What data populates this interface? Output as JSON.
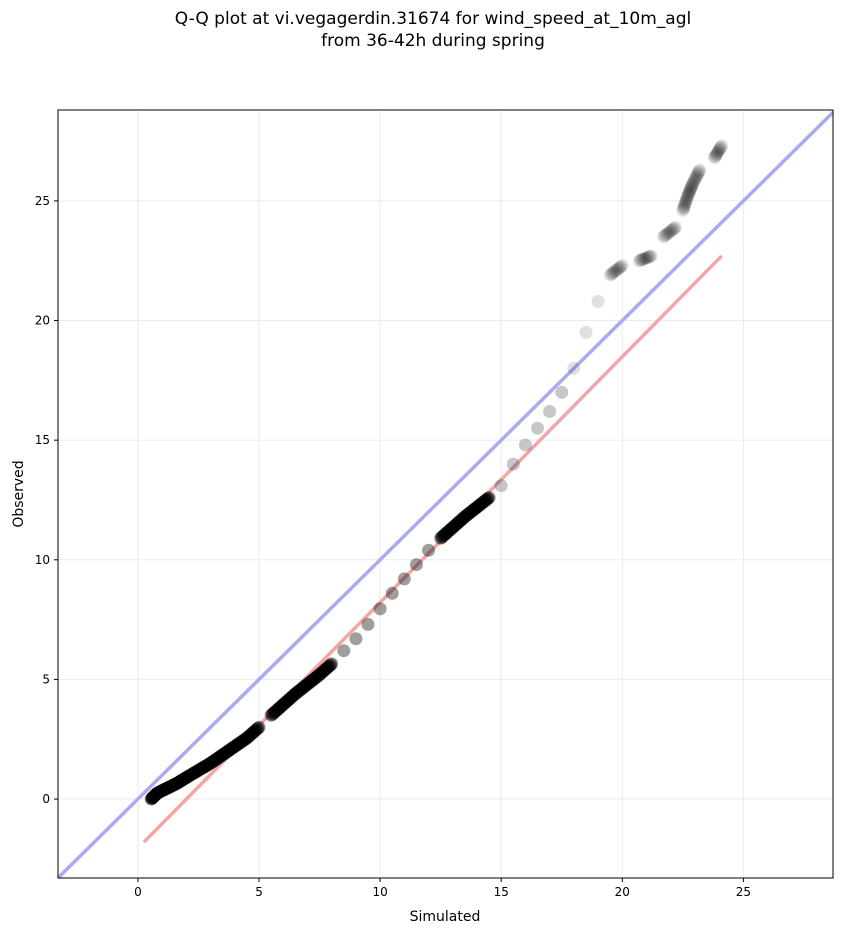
{
  "chart_data": {
    "type": "scatter",
    "title_line1": "Q-Q plot at vi.vegagerdin.31674 for wind_speed_at_10m_agl",
    "title_line2": "from 36-42h during spring",
    "xlabel": "Simulated",
    "ylabel": "Observed",
    "xlim": [
      -3.3,
      28.7
    ],
    "ylim": [
      -3.3,
      28.8
    ],
    "x_ticks": [
      0,
      5,
      10,
      15,
      20,
      25
    ],
    "y_ticks": [
      0,
      5,
      10,
      15,
      20,
      25
    ],
    "grid": true,
    "colors": {
      "points": "#000000",
      "identity_line": "#aaaaf0",
      "fit_line": "#f4a6a6",
      "grid": "#ebebeb"
    },
    "series": [
      {
        "kind": "quantile-points",
        "points": [
          [
            0.55,
            0.0
          ],
          [
            0.8,
            0.25
          ],
          [
            1.2,
            0.45
          ],
          [
            1.6,
            0.65
          ],
          [
            2.0,
            0.9
          ],
          [
            2.5,
            1.2
          ],
          [
            3.0,
            1.5
          ],
          [
            3.5,
            1.85
          ],
          [
            4.0,
            2.2
          ],
          [
            4.5,
            2.55
          ],
          [
            5.0,
            3.0
          ],
          [
            5.5,
            3.5
          ],
          [
            6.0,
            3.95
          ],
          [
            6.5,
            4.4
          ],
          [
            7.0,
            4.8
          ],
          [
            7.5,
            5.2
          ],
          [
            8.0,
            5.65
          ],
          [
            8.5,
            6.2
          ],
          [
            9.0,
            6.7
          ],
          [
            9.5,
            7.3
          ],
          [
            10.0,
            7.95
          ],
          [
            10.5,
            8.6
          ],
          [
            11.0,
            9.2
          ],
          [
            11.5,
            9.8
          ],
          [
            12.0,
            10.4
          ],
          [
            12.5,
            10.9
          ],
          [
            13.0,
            11.35
          ],
          [
            13.5,
            11.8
          ],
          [
            14.0,
            12.2
          ],
          [
            14.5,
            12.6
          ],
          [
            15.0,
            13.1
          ],
          [
            15.5,
            14.0
          ],
          [
            16.0,
            14.8
          ],
          [
            16.5,
            15.5
          ],
          [
            17.0,
            16.2
          ],
          [
            17.5,
            17.0
          ],
          [
            18.0,
            18.0
          ],
          [
            18.5,
            19.5
          ],
          [
            19.0,
            20.8
          ],
          [
            19.5,
            21.9
          ],
          [
            20.0,
            22.3
          ],
          [
            20.7,
            22.5
          ],
          [
            21.2,
            22.7
          ],
          [
            21.7,
            23.5
          ],
          [
            22.2,
            23.9
          ],
          [
            22.5,
            24.6
          ],
          [
            22.7,
            25.2
          ],
          [
            22.9,
            25.7
          ],
          [
            23.2,
            26.3
          ],
          [
            23.8,
            26.8
          ],
          [
            24.1,
            27.3
          ]
        ]
      },
      {
        "kind": "identity-line",
        "points": [
          [
            -3.3,
            -3.3
          ],
          [
            28.7,
            28.7
          ]
        ]
      },
      {
        "kind": "fit-line",
        "points": [
          [
            0.25,
            -1.8
          ],
          [
            24.1,
            22.7
          ]
        ]
      }
    ]
  }
}
